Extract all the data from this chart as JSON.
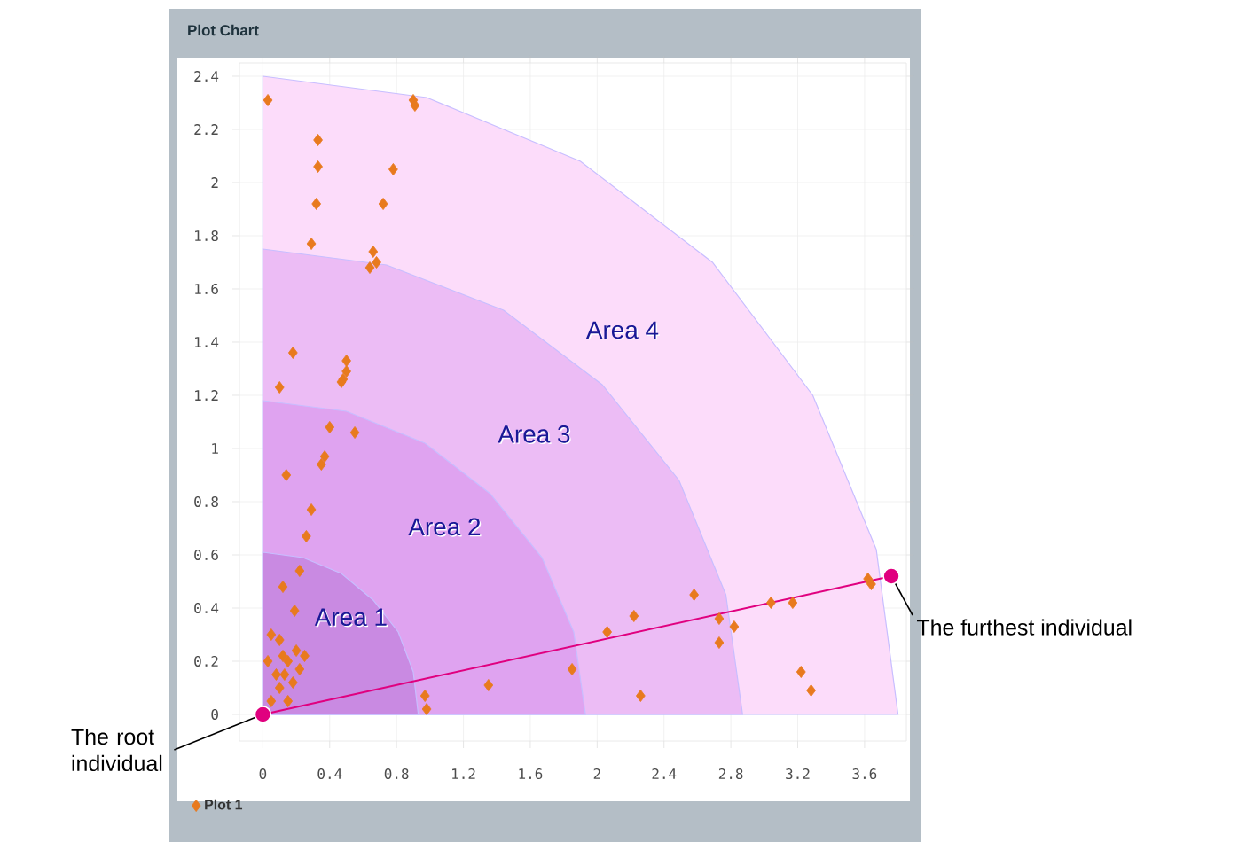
{
  "chart_data": {
    "type": "scatter",
    "title": "Plot Chart",
    "xlim": [
      -0.14,
      3.85
    ],
    "ylim": [
      -0.1,
      2.45
    ],
    "xticks": [
      0,
      0.4,
      0.8,
      1.2,
      1.6,
      2,
      2.4,
      2.8,
      3.2,
      3.6
    ],
    "yticks": [
      0,
      0.2,
      0.4,
      0.6,
      0.8,
      1,
      1.2,
      1.4,
      1.6,
      1.8,
      2,
      2.2,
      2.4
    ],
    "grid": true,
    "legend": "bottom left",
    "series": [
      {
        "name": "Plot 1",
        "color": "#e87a1e",
        "marker": "diamond",
        "x": [
          0.03,
          0.9,
          0.91,
          0.33,
          0.33,
          0.78,
          0.32,
          0.72,
          0.29,
          0.66,
          0.64,
          0.68,
          0.18,
          0.5,
          0.5,
          0.48,
          0.47,
          0.1,
          0.4,
          0.55,
          0.37,
          0.35,
          0.14,
          0.29,
          0.26,
          0.22,
          0.12,
          0.19,
          0.05,
          0.1,
          0.12,
          0.15,
          0.2,
          0.25,
          0.22,
          0.18,
          0.1,
          0.05,
          0.15,
          0.08,
          0.03,
          0.13,
          0.97,
          0.98,
          1.35,
          1.85,
          2.06,
          2.22,
          2.26,
          2.58,
          2.73,
          2.73,
          2.82,
          3.04,
          3.17,
          3.22,
          3.28,
          3.62,
          3.64
        ],
        "values": [
          2.31,
          2.31,
          2.29,
          2.16,
          2.06,
          2.05,
          1.92,
          1.92,
          1.77,
          1.74,
          1.68,
          1.7,
          1.36,
          1.33,
          1.29,
          1.26,
          1.25,
          1.23,
          1.08,
          1.06,
          0.97,
          0.94,
          0.9,
          0.77,
          0.67,
          0.54,
          0.48,
          0.39,
          0.3,
          0.28,
          0.22,
          0.2,
          0.24,
          0.22,
          0.17,
          0.12,
          0.1,
          0.05,
          0.05,
          0.15,
          0.2,
          0.15,
          0.07,
          0.02,
          0.11,
          0.17,
          0.31,
          0.37,
          0.07,
          0.45,
          0.36,
          0.27,
          0.33,
          0.42,
          0.42,
          0.16,
          0.09,
          0.51,
          0.49
        ]
      },
      {
        "name": "Area 1",
        "type": "area",
        "color": "#c98ae2",
        "x": [
          0,
          0.24,
          0.47,
          0.66,
          0.81,
          0.9,
          0.93
        ],
        "values": [
          0.61,
          0.59,
          0.53,
          0.43,
          0.31,
          0.16,
          0
        ]
      },
      {
        "name": "Area 2",
        "type": "area",
        "color": "#dfa3f0",
        "x": [
          0,
          0.5,
          0.97,
          1.36,
          1.67,
          1.86,
          1.93
        ],
        "values": [
          1.18,
          1.14,
          1.02,
          0.83,
          0.59,
          0.31,
          0
        ]
      },
      {
        "name": "Area 3",
        "type": "area",
        "color": "#ecbcf5",
        "x": [
          0,
          0.74,
          1.44,
          2.03,
          2.49,
          2.77,
          2.87
        ],
        "values": [
          1.75,
          1.69,
          1.52,
          1.24,
          0.88,
          0.45,
          0
        ]
      },
      {
        "name": "Area 4",
        "type": "area",
        "color": "#fcdcfa",
        "x": [
          0,
          0.98,
          1.9,
          2.69,
          3.29,
          3.67,
          3.8
        ],
        "values": [
          2.4,
          2.32,
          2.08,
          1.7,
          1.2,
          0.62,
          0
        ]
      },
      {
        "type": "line",
        "color": "#e0007f",
        "marker": "circle",
        "x": [
          0,
          3.76
        ],
        "values": [
          0,
          0.52
        ]
      }
    ],
    "annotations": [
      {
        "text": "The root individual",
        "x": 0,
        "y": 0
      },
      {
        "text": "The furthest individual",
        "x": 3.76,
        "y": 0.52
      }
    ]
  }
}
